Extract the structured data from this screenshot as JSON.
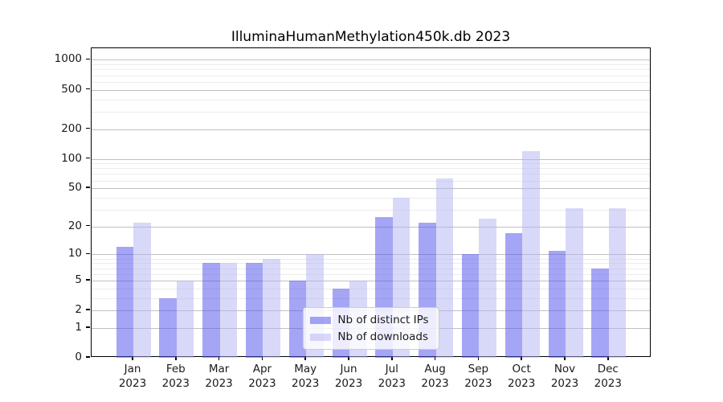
{
  "chart_data": {
    "type": "bar",
    "title": "IlluminaHumanMethylation450k.db 2023",
    "categories": [
      "Jan",
      "Feb",
      "Mar",
      "Apr",
      "May",
      "Jun",
      "Jul",
      "Aug",
      "Sep",
      "Oct",
      "Nov",
      "Dec"
    ],
    "x_tick_second_line": "2023",
    "series": [
      {
        "name": "Nb of distinct IPs",
        "color": "#a5a5f5",
        "fill_rgba": "rgba(82,82,238,0.52)",
        "values": [
          12,
          3,
          8,
          8,
          5,
          4,
          25,
          22,
          10,
          17,
          11,
          7
        ]
      },
      {
        "name": "Nb of downloads",
        "color": "#d8d8f8",
        "fill_rgba": "rgba(178,178,242,0.5)",
        "values": [
          22,
          5,
          8,
          9,
          10,
          5,
          40,
          63,
          24,
          120,
          31,
          31
        ]
      }
    ],
    "yticks": [
      0,
      1,
      2,
      5,
      10,
      20,
      50,
      100,
      200,
      500,
      1000
    ],
    "yscale": "log10(1+x)",
    "ylim": [
      0,
      1290
    ],
    "grid": true,
    "gridline_minor_color": "#ececec",
    "gridline_major_color": "#c0c0c0",
    "legend_position": "lower center"
  }
}
